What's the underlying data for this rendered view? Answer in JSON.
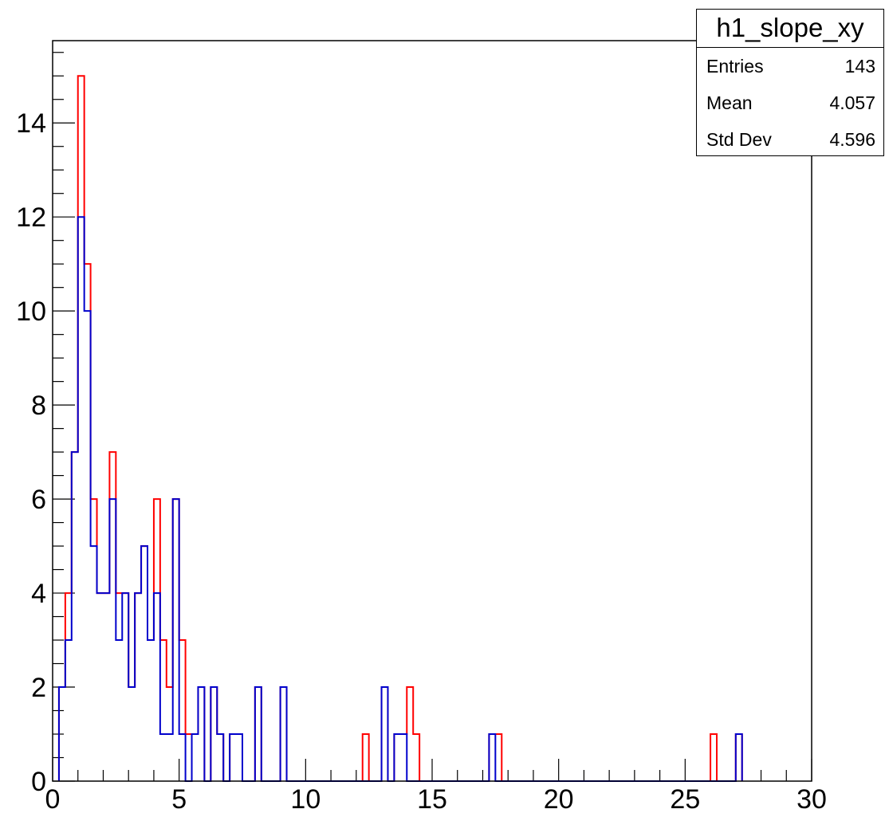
{
  "chart_data": {
    "type": "bar",
    "histogram": true,
    "xlim": [
      0,
      30
    ],
    "ylim": [
      0,
      15.75
    ],
    "x_ticks": [
      0,
      5,
      10,
      15,
      20,
      25,
      30
    ],
    "y_ticks": [
      0,
      2,
      4,
      6,
      8,
      10,
      12,
      14
    ],
    "bin_width": 0.25,
    "title": "",
    "xlabel": "",
    "ylabel": "",
    "grid": false,
    "series": [
      {
        "color": "#ff0000",
        "bins": [
          {
            "x": 0.25,
            "y": 2
          },
          {
            "x": 0.5,
            "y": 4
          },
          {
            "x": 0.75,
            "y": 7
          },
          {
            "x": 1.0,
            "y": 15
          },
          {
            "x": 1.25,
            "y": 11
          },
          {
            "x": 1.5,
            "y": 6
          },
          {
            "x": 1.75,
            "y": 4
          },
          {
            "x": 2.0,
            "y": 4
          },
          {
            "x": 2.25,
            "y": 7
          },
          {
            "x": 2.5,
            "y": 4
          },
          {
            "x": 2.75,
            "y": 4
          },
          {
            "x": 3.0,
            "y": 2
          },
          {
            "x": 3.25,
            "y": 4
          },
          {
            "x": 3.5,
            "y": 5
          },
          {
            "x": 3.75,
            "y": 3
          },
          {
            "x": 4.0,
            "y": 6
          },
          {
            "x": 4.25,
            "y": 3
          },
          {
            "x": 4.5,
            "y": 2
          },
          {
            "x": 4.75,
            "y": 6
          },
          {
            "x": 5.0,
            "y": 3
          },
          {
            "x": 5.25,
            "y": 1
          },
          {
            "x": 5.5,
            "y": 1
          },
          {
            "x": 5.75,
            "y": 2
          },
          {
            "x": 6.0,
            "y": 0
          },
          {
            "x": 6.25,
            "y": 2
          },
          {
            "x": 6.5,
            "y": 1
          },
          {
            "x": 6.75,
            "y": 0
          },
          {
            "x": 7.0,
            "y": 1
          },
          {
            "x": 7.25,
            "y": 1
          },
          {
            "x": 7.5,
            "y": 0
          },
          {
            "x": 7.75,
            "y": 0
          },
          {
            "x": 8.0,
            "y": 2
          },
          {
            "x": 8.25,
            "y": 0
          },
          {
            "x": 8.5,
            "y": 0
          },
          {
            "x": 8.75,
            "y": 0
          },
          {
            "x": 9.0,
            "y": 2
          },
          {
            "x": 12.25,
            "y": 1
          },
          {
            "x": 13.0,
            "y": 2
          },
          {
            "x": 13.25,
            "y": 0
          },
          {
            "x": 13.5,
            "y": 1
          },
          {
            "x": 13.75,
            "y": 1
          },
          {
            "x": 14.0,
            "y": 2
          },
          {
            "x": 14.25,
            "y": 1
          },
          {
            "x": 17.25,
            "y": 1
          },
          {
            "x": 17.5,
            "y": 1
          },
          {
            "x": 26.0,
            "y": 1
          },
          {
            "x": 27.0,
            "y": 1
          }
        ]
      },
      {
        "color": "#0000cc",
        "bins": [
          {
            "x": 0.25,
            "y": 2
          },
          {
            "x": 0.5,
            "y": 3
          },
          {
            "x": 0.75,
            "y": 7
          },
          {
            "x": 1.0,
            "y": 12
          },
          {
            "x": 1.25,
            "y": 10
          },
          {
            "x": 1.5,
            "y": 5
          },
          {
            "x": 1.75,
            "y": 4
          },
          {
            "x": 2.0,
            "y": 4
          },
          {
            "x": 2.25,
            "y": 6
          },
          {
            "x": 2.5,
            "y": 3
          },
          {
            "x": 2.75,
            "y": 4
          },
          {
            "x": 3.0,
            "y": 2
          },
          {
            "x": 3.25,
            "y": 4
          },
          {
            "x": 3.5,
            "y": 5
          },
          {
            "x": 3.75,
            "y": 3
          },
          {
            "x": 4.0,
            "y": 4
          },
          {
            "x": 4.25,
            "y": 1
          },
          {
            "x": 4.5,
            "y": 1
          },
          {
            "x": 4.75,
            "y": 6
          },
          {
            "x": 5.0,
            "y": 1
          },
          {
            "x": 5.25,
            "y": 0
          },
          {
            "x": 5.5,
            "y": 1
          },
          {
            "x": 5.75,
            "y": 2
          },
          {
            "x": 6.0,
            "y": 0
          },
          {
            "x": 6.25,
            "y": 2
          },
          {
            "x": 6.5,
            "y": 1
          },
          {
            "x": 6.75,
            "y": 0
          },
          {
            "x": 7.0,
            "y": 1
          },
          {
            "x": 7.25,
            "y": 1
          },
          {
            "x": 7.5,
            "y": 0
          },
          {
            "x": 7.75,
            "y": 0
          },
          {
            "x": 8.0,
            "y": 2
          },
          {
            "x": 8.25,
            "y": 0
          },
          {
            "x": 8.5,
            "y": 0
          },
          {
            "x": 8.75,
            "y": 0
          },
          {
            "x": 9.0,
            "y": 2
          },
          {
            "x": 13.0,
            "y": 2
          },
          {
            "x": 13.25,
            "y": 0
          },
          {
            "x": 13.5,
            "y": 1
          },
          {
            "x": 13.75,
            "y": 1
          },
          {
            "x": 17.25,
            "y": 1
          },
          {
            "x": 27.0,
            "y": 1
          }
        ]
      }
    ]
  },
  "stats": {
    "title": "h1_slope_xy",
    "rows": [
      {
        "label": "Entries",
        "value": "143"
      },
      {
        "label": "Mean",
        "value": "4.057"
      },
      {
        "label": "Std Dev",
        "value": "4.596"
      }
    ]
  }
}
